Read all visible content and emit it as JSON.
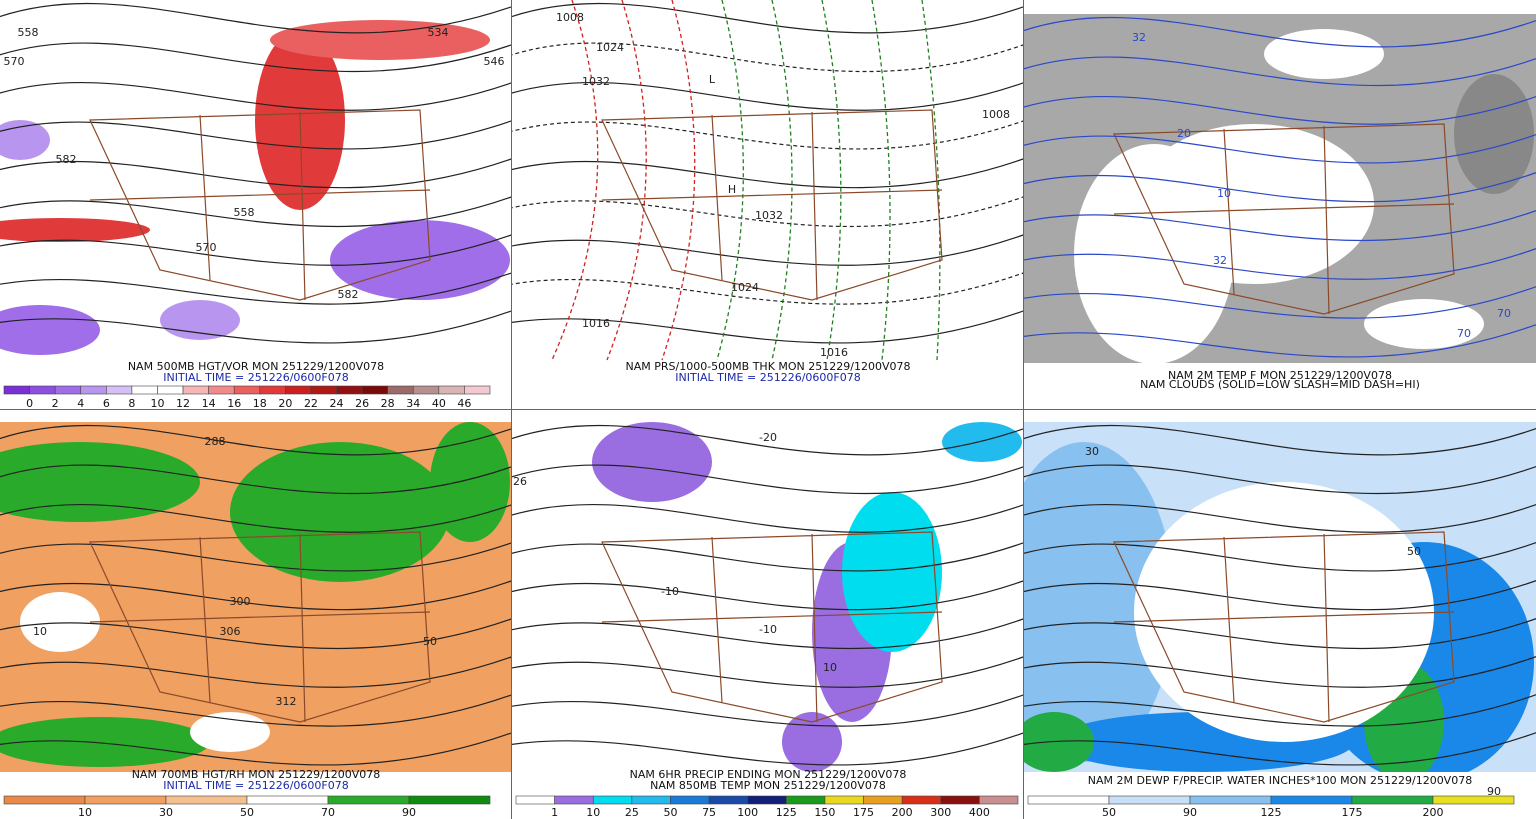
{
  "panels": [
    {
      "captions": [
        "NAM 500MB HGT/VOR MON 251229/1200V078",
        "INITIAL TIME = 251226/0600F078"
      ],
      "map_labels": [
        "558",
        "570",
        "582",
        "558",
        "570",
        "582",
        "534",
        "546"
      ],
      "colorbar": {
        "ticks": [
          0,
          2,
          4,
          6,
          8,
          10,
          12,
          14,
          16,
          18,
          20,
          22,
          24,
          26,
          28,
          34,
          40,
          46
        ],
        "colors": [
          "#7b2fd6",
          "#8c4fe0",
          "#9f6ee8",
          "#b896ef",
          "#d4c0f5",
          "#ffffff",
          "#ffffff",
          "#f7b6b6",
          "#f28a8a",
          "#ea5f5f",
          "#e03a3a",
          "#cc2020",
          "#b01818",
          "#941010",
          "#7a0a0a",
          "#9c6a6a",
          "#b89090",
          "#d8b4b4",
          "#f4c8d0"
        ]
      }
    },
    {
      "captions": [
        "NAM PRS/1000-500MB THK MON 251229/1200V078",
        "INITIAL TIME = 251226/0600F078"
      ],
      "map_labels": [
        "1008",
        "1024",
        "1032",
        "1016",
        "1016",
        "1008",
        "1032",
        "1024",
        "L",
        "H"
      ]
    },
    {
      "captions": [
        "NAM 2M TEMP F MON 251229/1200V078",
        "NAM CLOUDS (SOLID=LOW SLASH=MID DASH=HI)"
      ],
      "map_labels": [
        "32",
        "20",
        "10",
        "32",
        "70",
        "70"
      ]
    },
    {
      "captions": [
        "NAM 700MB HGT/RH MON 251229/1200V078",
        "INITIAL TIME = 251226/0600F078"
      ],
      "map_labels": [
        "288",
        "300",
        "306",
        "312",
        "10",
        "50"
      ],
      "colorbar": {
        "ticks": [
          10,
          30,
          50,
          70,
          90
        ],
        "colors": [
          "#e8894a",
          "#f0a060",
          "#f5c090",
          "#ffffff",
          "#2aaa2a",
          "#108a10"
        ]
      }
    },
    {
      "captions": [
        "NAM 6HR PRECIP ENDING MON 251229/1200V078",
        "NAM 850MB TEMP MON 251229/1200V078"
      ],
      "map_labels": [
        "-20",
        "-10",
        "-10",
        "10",
        "26"
      ],
      "colorbar": {
        "ticks": [
          1,
          10,
          25,
          50,
          75,
          100,
          125,
          150,
          175,
          200,
          300,
          400
        ],
        "colors": [
          "#ffffff",
          "#9a6ee0",
          "#00ddee",
          "#22bbee",
          "#1a7ad8",
          "#1a4aa8",
          "#12207a",
          "#1a9a1a",
          "#e8d820",
          "#e8a020",
          "#d83018",
          "#8a1010",
          "#c89090"
        ]
      }
    },
    {
      "captions": [
        "NAM 2M DEWP F/PRECIP. WATER INCHES*100 MON 251229/1200V078"
      ],
      "map_labels": [
        "30",
        "50",
        "90"
      ],
      "colorbar": {
        "ticks": [
          50,
          90,
          125,
          175,
          200
        ],
        "colors": [
          "#ffffff",
          "#c8e0f8",
          "#88c0f0",
          "#1a88e8",
          "#22aa44",
          "#e8e020"
        ]
      }
    }
  ]
}
